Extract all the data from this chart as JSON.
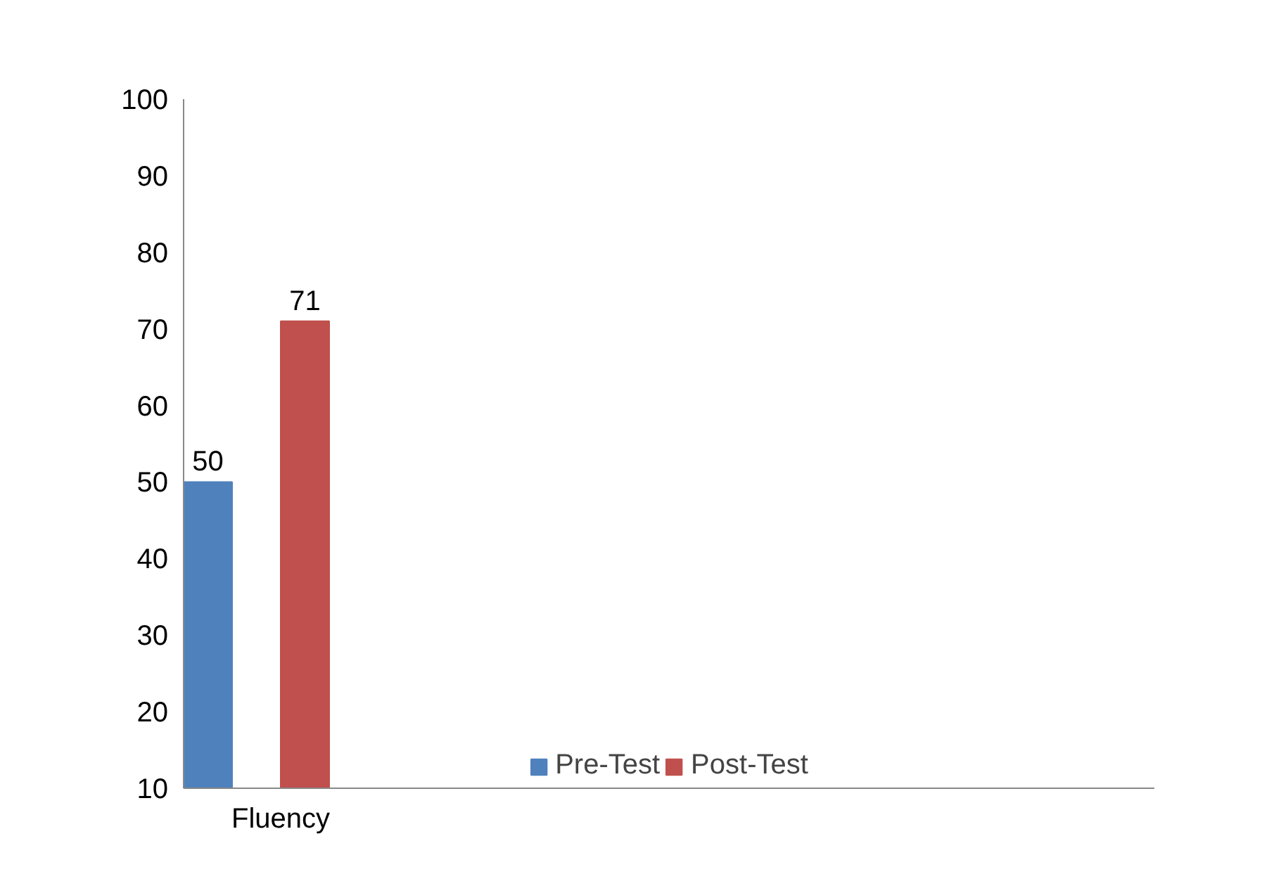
{
  "chart_data": {
    "type": "bar",
    "categories": [
      "Fluency",
      null,
      null,
      null,
      null
    ],
    "series": [
      {
        "name": "Pre-Test",
        "color": "#4f81bd",
        "values": [
          50,
          null,
          null,
          null,
          null
        ]
      },
      {
        "name": "Post-Test",
        "color": "#c0504d",
        "values": [
          71,
          null,
          null,
          null,
          null
        ]
      }
    ],
    "ylim": [
      10,
      100
    ],
    "yticks": [
      10,
      20,
      30,
      40,
      50,
      60,
      70,
      80,
      90,
      100
    ],
    "grid": false,
    "legend": "bottom",
    "data_labels": true
  }
}
